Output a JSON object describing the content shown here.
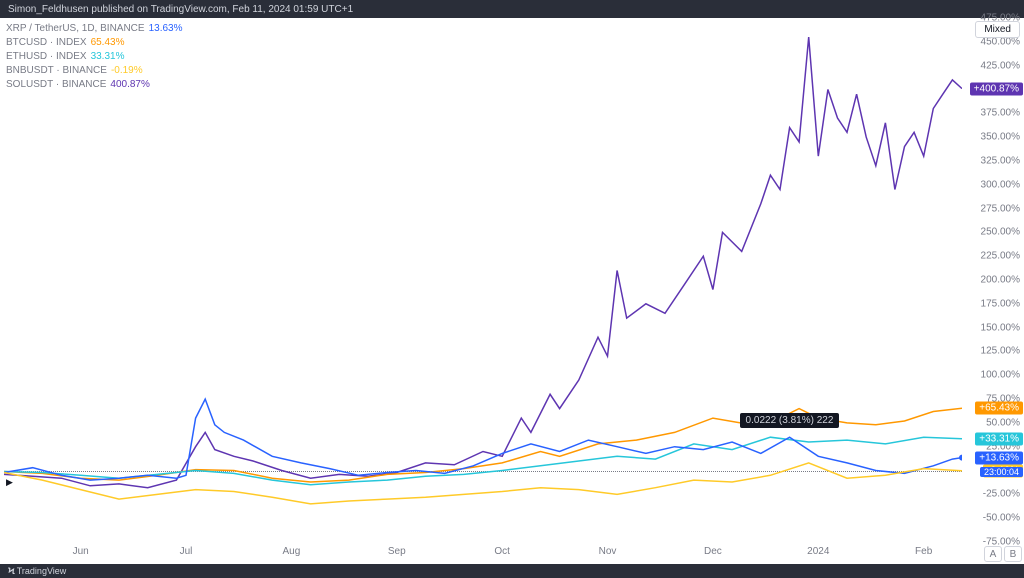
{
  "header": {
    "publisher": "Simon_Feldhusen published on TradingView.com, Feb 11, 2024 01:59 UTC+1"
  },
  "footer": {
    "brand": "TradingView"
  },
  "button": {
    "mixed": "Mixed",
    "a": "A",
    "b": "B"
  },
  "legend": [
    {
      "pair": "XRP / TetherUS, 1D, BINANCE",
      "val": "13.63%",
      "color": "#2962ff"
    },
    {
      "pair": "BTCUSD · INDEX",
      "val": "65.43%",
      "color": "#ff9800"
    },
    {
      "pair": "ETHUSD · INDEX",
      "val": "33.31%",
      "color": "#26c6da"
    },
    {
      "pair": "BNBUSDT · BINANCE",
      "val": "-0.19%",
      "color": "#ffca28"
    },
    {
      "pair": "SOLUSDT · BINANCE",
      "val": "400.87%",
      "color": "#5e35b1"
    }
  ],
  "tooltip": {
    "text": "0.0222 (3.81%) 222"
  },
  "countdown": "23:00:04",
  "yaxis": {
    "min": -75,
    "max": 475,
    "step": 25,
    "labels": [
      "475.00%",
      "450.00%",
      "425.00%",
      "400.00%",
      "375.00%",
      "350.00%",
      "325.00%",
      "300.00%",
      "275.00%",
      "250.00%",
      "225.00%",
      "200.00%",
      "175.00%",
      "150.00%",
      "125.00%",
      "100.00%",
      "75.00%",
      "50.00%",
      "25.00%",
      "0.00%",
      "-25.00%",
      "-50.00%",
      "-75.00%"
    ]
  },
  "xaxis": {
    "labels": [
      "Jun",
      "Jul",
      "Aug",
      "Sep",
      "Oct",
      "Nov",
      "Dec",
      "2024",
      "Feb"
    ],
    "positions": [
      0.08,
      0.19,
      0.3,
      0.41,
      0.52,
      0.63,
      0.74,
      0.85,
      0.96
    ]
  },
  "badges": [
    {
      "text": "+400.87%",
      "value": 400.87,
      "bg": "#5e35b1"
    },
    {
      "text": "+65.43%",
      "value": 65.43,
      "bg": "#ff9800"
    },
    {
      "text": "+33.31%",
      "value": 33.31,
      "bg": "#26c6da"
    },
    {
      "text": "+13.63%",
      "value": 13.63,
      "bg": "#2962ff"
    },
    {
      "text": "-0.19%",
      "value": -0.19,
      "bg": "#ffca28"
    }
  ],
  "tooltip_pos": {
    "x": 0.82,
    "y_value": 50
  },
  "chart": {
    "type": "line-comparison",
    "background_color": "#ffffff",
    "line_width": 1.5,
    "series": [
      {
        "name": "SOL",
        "color": "#5e35b1",
        "points": [
          [
            0.0,
            -4
          ],
          [
            0.03,
            -6
          ],
          [
            0.06,
            -8
          ],
          [
            0.09,
            -16
          ],
          [
            0.12,
            -14
          ],
          [
            0.15,
            -18
          ],
          [
            0.18,
            -10
          ],
          [
            0.2,
            25
          ],
          [
            0.21,
            40
          ],
          [
            0.22,
            22
          ],
          [
            0.24,
            15
          ],
          [
            0.26,
            10
          ],
          [
            0.29,
            0
          ],
          [
            0.32,
            -8
          ],
          [
            0.35,
            -4
          ],
          [
            0.38,
            -6
          ],
          [
            0.41,
            -2
          ],
          [
            0.44,
            8
          ],
          [
            0.47,
            6
          ],
          [
            0.5,
            20
          ],
          [
            0.52,
            15
          ],
          [
            0.54,
            55
          ],
          [
            0.55,
            40
          ],
          [
            0.57,
            80
          ],
          [
            0.58,
            65
          ],
          [
            0.6,
            95
          ],
          [
            0.62,
            140
          ],
          [
            0.63,
            120
          ],
          [
            0.64,
            210
          ],
          [
            0.65,
            160
          ],
          [
            0.67,
            175
          ],
          [
            0.69,
            165
          ],
          [
            0.71,
            195
          ],
          [
            0.73,
            225
          ],
          [
            0.74,
            190
          ],
          [
            0.75,
            250
          ],
          [
            0.77,
            230
          ],
          [
            0.79,
            280
          ],
          [
            0.8,
            310
          ],
          [
            0.81,
            295
          ],
          [
            0.82,
            360
          ],
          [
            0.83,
            345
          ],
          [
            0.84,
            455
          ],
          [
            0.85,
            330
          ],
          [
            0.86,
            400
          ],
          [
            0.87,
            370
          ],
          [
            0.88,
            355
          ],
          [
            0.89,
            395
          ],
          [
            0.9,
            350
          ],
          [
            0.91,
            320
          ],
          [
            0.92,
            365
          ],
          [
            0.93,
            295
          ],
          [
            0.94,
            340
          ],
          [
            0.95,
            355
          ],
          [
            0.96,
            330
          ],
          [
            0.97,
            380
          ],
          [
            0.98,
            395
          ],
          [
            0.99,
            410
          ],
          [
            1.0,
            400.87
          ]
        ]
      },
      {
        "name": "BTC",
        "color": "#ff9800",
        "points": [
          [
            0.0,
            -1
          ],
          [
            0.04,
            -3
          ],
          [
            0.08,
            -8
          ],
          [
            0.12,
            -10
          ],
          [
            0.16,
            -5
          ],
          [
            0.2,
            1
          ],
          [
            0.24,
            0
          ],
          [
            0.28,
            -8
          ],
          [
            0.32,
            -12
          ],
          [
            0.36,
            -10
          ],
          [
            0.4,
            -4
          ],
          [
            0.44,
            -2
          ],
          [
            0.48,
            2
          ],
          [
            0.52,
            8
          ],
          [
            0.56,
            20
          ],
          [
            0.58,
            15
          ],
          [
            0.62,
            28
          ],
          [
            0.66,
            32
          ],
          [
            0.7,
            40
          ],
          [
            0.74,
            55
          ],
          [
            0.78,
            48
          ],
          [
            0.8,
            50
          ],
          [
            0.83,
            65
          ],
          [
            0.85,
            55
          ],
          [
            0.88,
            50
          ],
          [
            0.91,
            48
          ],
          [
            0.94,
            52
          ],
          [
            0.97,
            62
          ],
          [
            1.0,
            65.43
          ]
        ]
      },
      {
        "name": "ETH",
        "color": "#26c6da",
        "points": [
          [
            0.0,
            -1
          ],
          [
            0.04,
            -2
          ],
          [
            0.08,
            -5
          ],
          [
            0.12,
            -8
          ],
          [
            0.16,
            -4
          ],
          [
            0.2,
            0
          ],
          [
            0.24,
            -3
          ],
          [
            0.28,
            -10
          ],
          [
            0.32,
            -15
          ],
          [
            0.36,
            -12
          ],
          [
            0.4,
            -10
          ],
          [
            0.44,
            -6
          ],
          [
            0.48,
            -4
          ],
          [
            0.52,
            0
          ],
          [
            0.56,
            5
          ],
          [
            0.6,
            10
          ],
          [
            0.64,
            15
          ],
          [
            0.68,
            12
          ],
          [
            0.72,
            28
          ],
          [
            0.76,
            22
          ],
          [
            0.8,
            35
          ],
          [
            0.84,
            30
          ],
          [
            0.88,
            32
          ],
          [
            0.92,
            28
          ],
          [
            0.96,
            35
          ],
          [
            1.0,
            33.31
          ]
        ]
      },
      {
        "name": "XRP",
        "color": "#2962ff",
        "points": [
          [
            0.0,
            -2
          ],
          [
            0.03,
            3
          ],
          [
            0.06,
            -5
          ],
          [
            0.09,
            -10
          ],
          [
            0.12,
            -8
          ],
          [
            0.15,
            -5
          ],
          [
            0.18,
            -8
          ],
          [
            0.19,
            -5
          ],
          [
            0.2,
            55
          ],
          [
            0.21,
            75
          ],
          [
            0.22,
            48
          ],
          [
            0.23,
            40
          ],
          [
            0.25,
            32
          ],
          [
            0.28,
            15
          ],
          [
            0.31,
            8
          ],
          [
            0.34,
            2
          ],
          [
            0.37,
            -5
          ],
          [
            0.4,
            -2
          ],
          [
            0.43,
            0
          ],
          [
            0.46,
            -3
          ],
          [
            0.49,
            5
          ],
          [
            0.52,
            18
          ],
          [
            0.55,
            28
          ],
          [
            0.58,
            20
          ],
          [
            0.61,
            32
          ],
          [
            0.64,
            25
          ],
          [
            0.67,
            18
          ],
          [
            0.7,
            25
          ],
          [
            0.73,
            22
          ],
          [
            0.76,
            30
          ],
          [
            0.79,
            18
          ],
          [
            0.82,
            35
          ],
          [
            0.85,
            15
          ],
          [
            0.88,
            8
          ],
          [
            0.91,
            0
          ],
          [
            0.94,
            -3
          ],
          [
            0.97,
            5
          ],
          [
            0.99,
            12
          ],
          [
            1.0,
            13.63
          ]
        ]
      },
      {
        "name": "BNB",
        "color": "#ffca28",
        "points": [
          [
            0.0,
            -2
          ],
          [
            0.04,
            -10
          ],
          [
            0.08,
            -20
          ],
          [
            0.12,
            -30
          ],
          [
            0.16,
            -25
          ],
          [
            0.2,
            -20
          ],
          [
            0.24,
            -22
          ],
          [
            0.28,
            -28
          ],
          [
            0.32,
            -35
          ],
          [
            0.36,
            -32
          ],
          [
            0.4,
            -30
          ],
          [
            0.44,
            -28
          ],
          [
            0.48,
            -25
          ],
          [
            0.52,
            -22
          ],
          [
            0.56,
            -18
          ],
          [
            0.6,
            -20
          ],
          [
            0.64,
            -25
          ],
          [
            0.68,
            -18
          ],
          [
            0.72,
            -10
          ],
          [
            0.76,
            -12
          ],
          [
            0.8,
            -5
          ],
          [
            0.84,
            8
          ],
          [
            0.88,
            -8
          ],
          [
            0.92,
            -5
          ],
          [
            0.96,
            2
          ],
          [
            1.0,
            -0.19
          ]
        ]
      }
    ]
  }
}
